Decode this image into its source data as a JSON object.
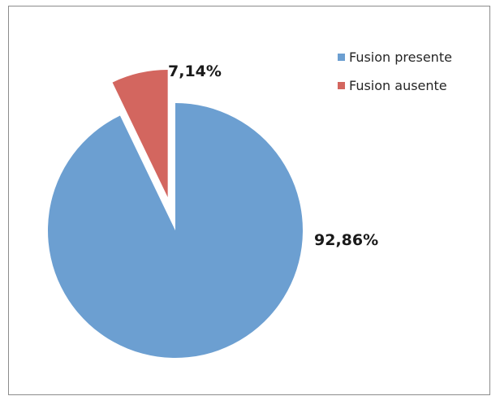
{
  "chart_data": {
    "type": "pie",
    "categories": [
      "Fusion presente",
      "Fusion ausente"
    ],
    "values": [
      92.86,
      7.14
    ],
    "data_labels": [
      "92,86%",
      "7,14%"
    ],
    "colors": [
      "#6c9fd1",
      "#d3665f"
    ],
    "exploded": [
      false,
      true
    ],
    "title": "",
    "legend_position": "top-right"
  },
  "legend": {
    "items": [
      {
        "label": "Fusion presente",
        "color": "#6c9fd1"
      },
      {
        "label": "Fusion ausente",
        "color": "#d3665f"
      }
    ]
  }
}
